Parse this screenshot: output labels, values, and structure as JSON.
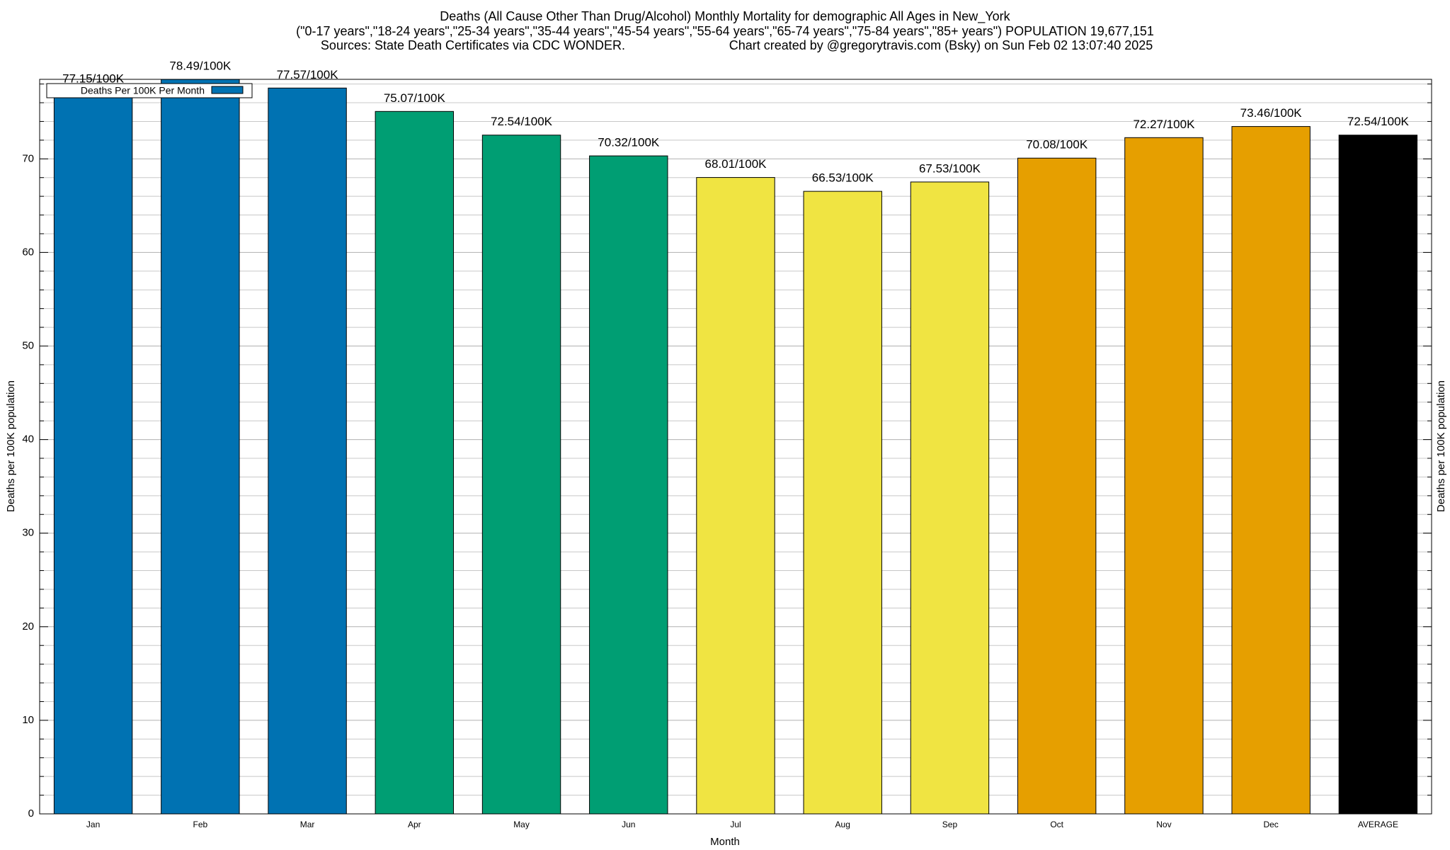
{
  "chart_data": {
    "type": "bar",
    "title": "Deaths (All Cause Other Than Drug/Alcohol) Monthly Mortality for demographic All Ages in New_York",
    "subtitle": "(\"0-17 years\",\"18-24 years\",\"25-34 years\",\"35-44 years\",\"45-54 years\",\"55-64 years\",\"65-74 years\",\"75-84 years\",\"85+ years\") POPULATION 19,677,151",
    "sources": "Sources: State Death Certificates via CDC WONDER.",
    "credit": "Chart created by @gregorytravis.com (Bsky) on Sun Feb 02 13:07:40 2025",
    "x_label": "Month",
    "y_label": "Deaths per 100K population",
    "y2_label": "Deaths per 100K population",
    "categories": [
      "Jan",
      "Feb",
      "Mar",
      "Apr",
      "May",
      "Jun",
      "Jul",
      "Aug",
      "Sep",
      "Oct",
      "Nov",
      "Dec",
      "AVERAGE"
    ],
    "series": [
      {
        "name": "Deaths Per 100K Per Month",
        "color": "#0072b2",
        "colors": [
          "#0072b2",
          "#0072b2",
          "#0072b2",
          "#009e73",
          "#009e73",
          "#009e73",
          "#f0e442",
          "#f0e442",
          "#f0e442",
          "#e69f00",
          "#e69f00",
          "#e69f00",
          "#000000"
        ],
        "values": [
          77.15,
          78.49,
          77.57,
          75.07,
          72.54,
          70.32,
          68.01,
          66.53,
          67.53,
          70.08,
          72.27,
          73.46,
          72.54
        ],
        "value_labels": [
          "77.15/100K",
          "78.49/100K",
          "77.57/100K",
          "75.07/100K",
          "72.54/100K",
          "70.32/100K",
          "68.01/100K",
          "66.53/100K",
          "67.53/100K",
          "70.08/100K",
          "72.27/100K",
          "73.46/100K",
          "72.54/100K"
        ]
      }
    ],
    "ylim": [
      0,
      78.5
    ],
    "yticks": [
      0,
      10,
      20,
      30,
      40,
      50,
      60,
      70
    ],
    "yminorticks": [
      2,
      4,
      6,
      8,
      12,
      14,
      16,
      18,
      22,
      24,
      26,
      28,
      32,
      34,
      36,
      38,
      42,
      44,
      46,
      48,
      52,
      54,
      56,
      58,
      62,
      64,
      66,
      68,
      72,
      74,
      76,
      78
    ],
    "grid": true,
    "legend": "upper left"
  }
}
